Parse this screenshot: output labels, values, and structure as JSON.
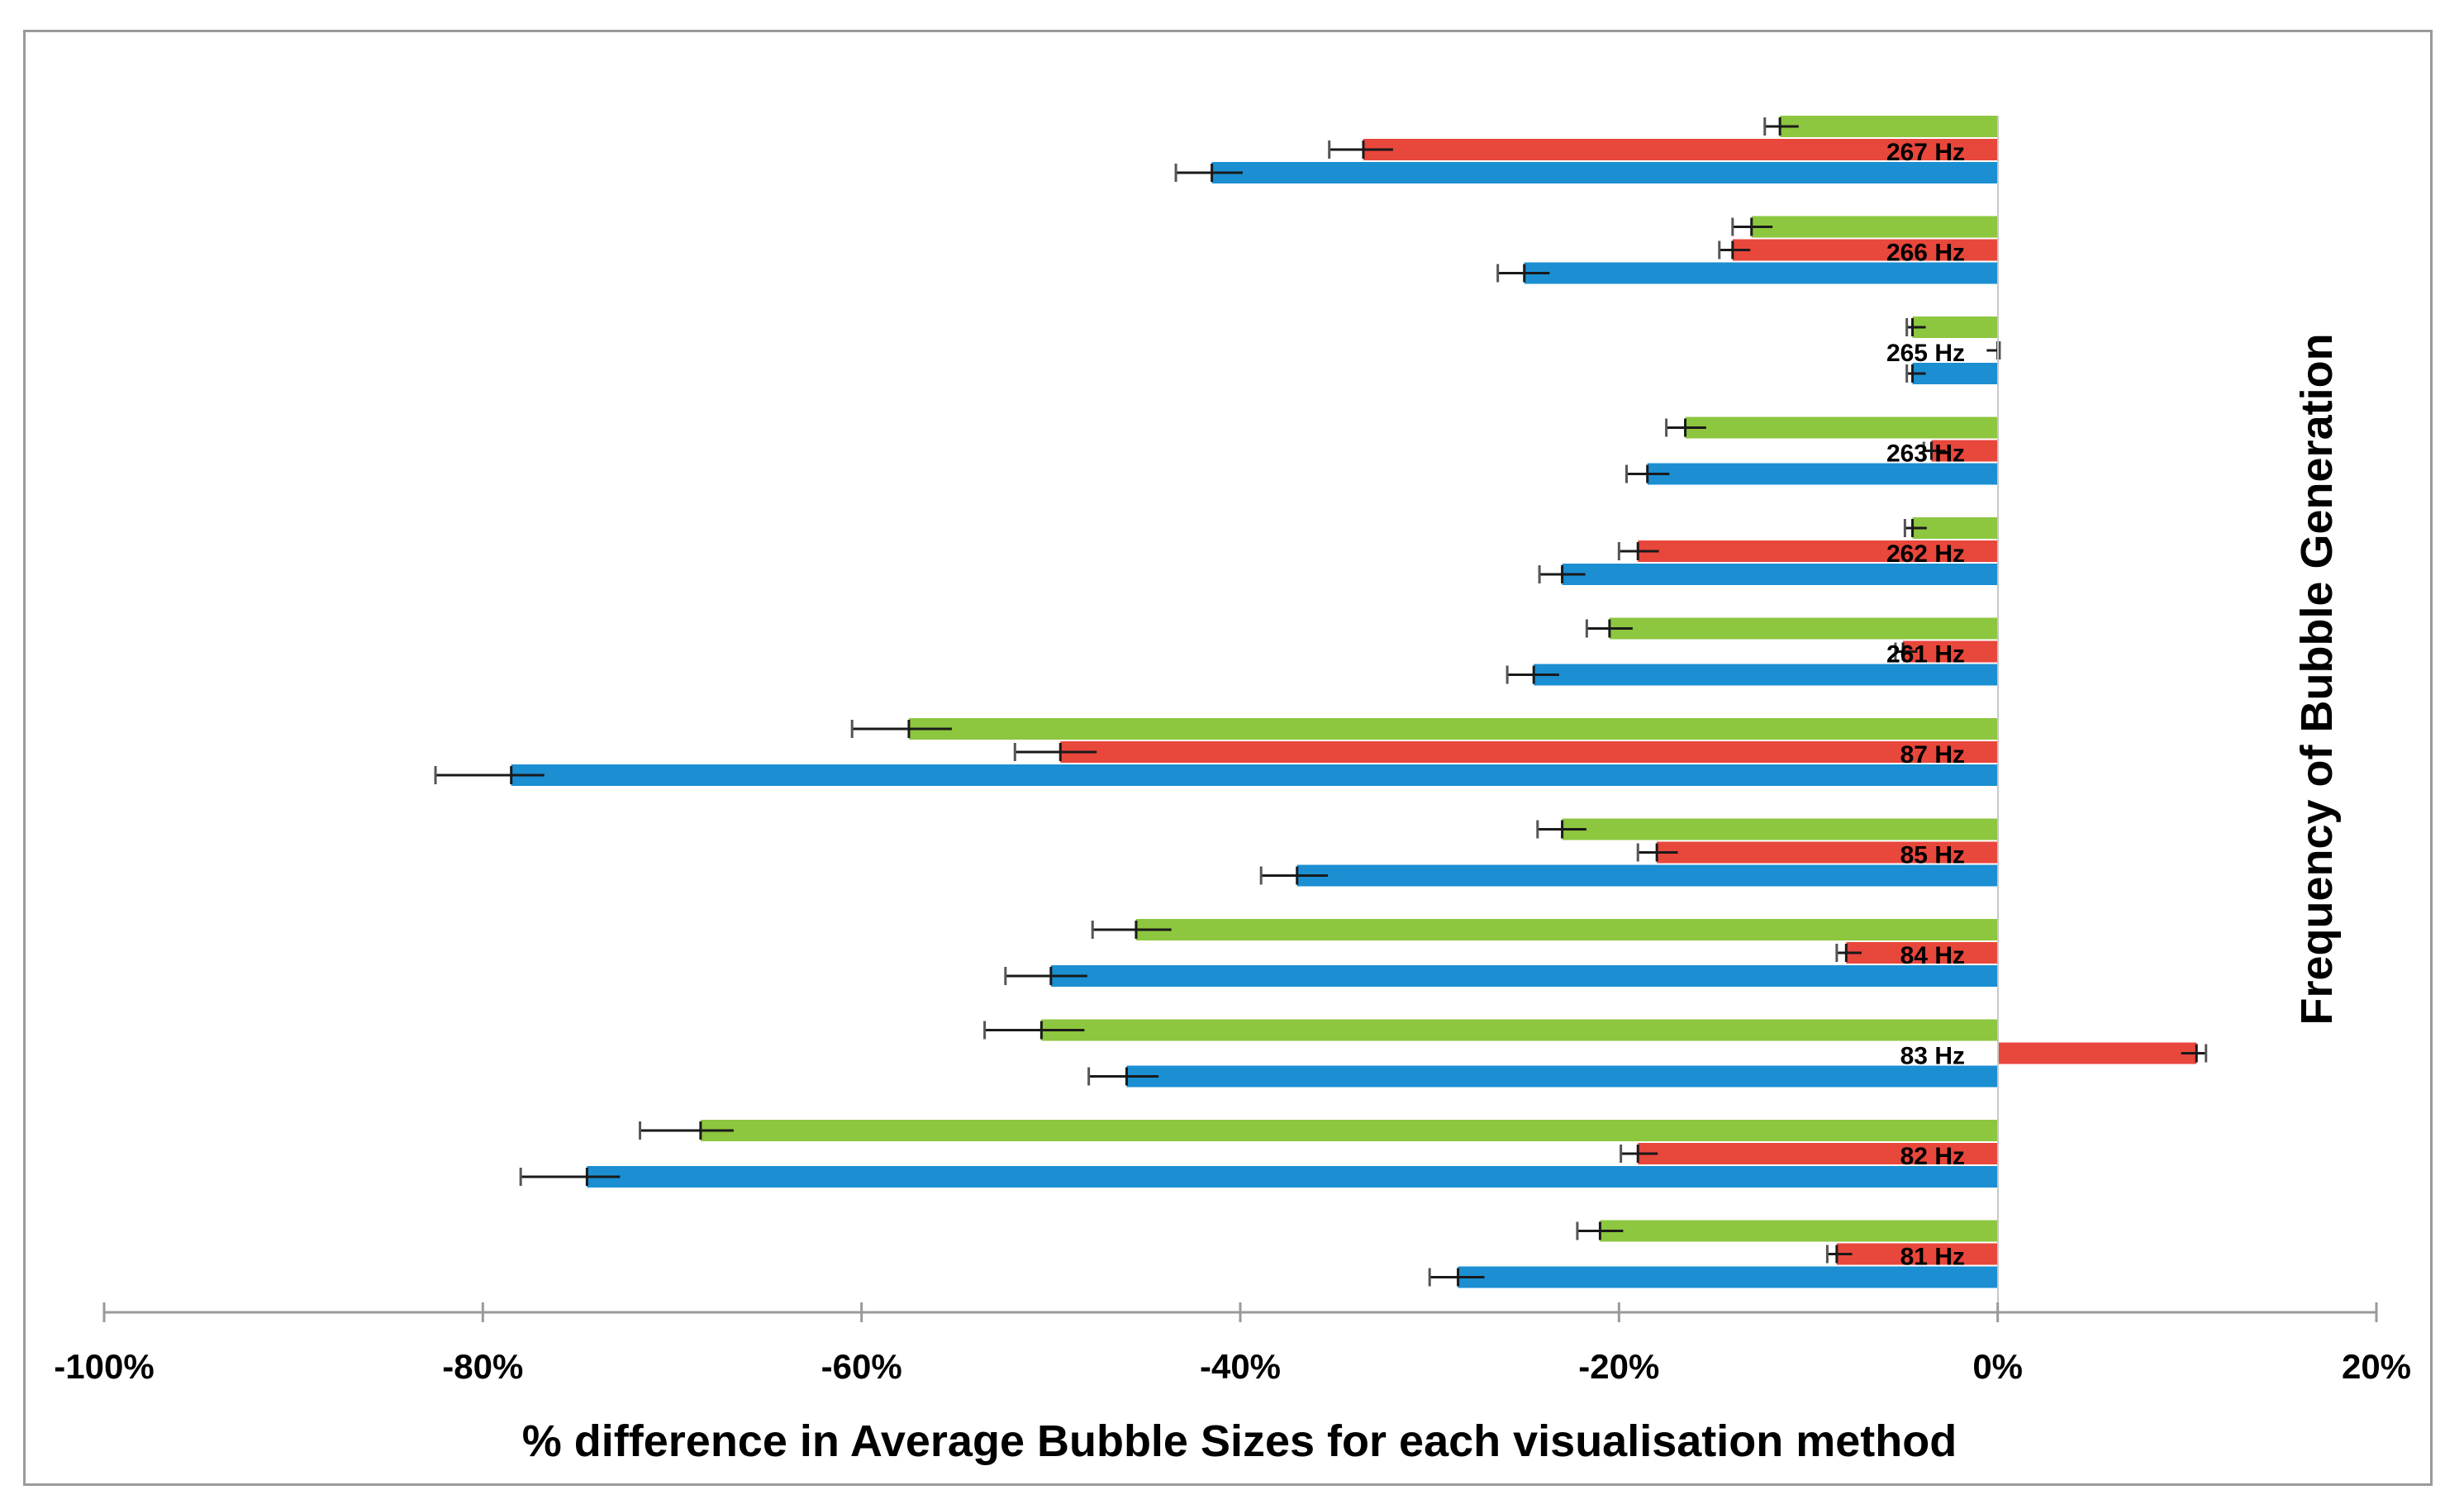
{
  "chart_data": {
    "type": "bar",
    "orientation": "horizontal",
    "categories": [
      "267 Hz",
      "266 Hz",
      "265 Hz",
      "263 Hz",
      "262 Hz",
      "261 Hz",
      "87 Hz",
      "85 Hz",
      "84 Hz",
      "83 Hz",
      "82 Hz",
      "81 Hz"
    ],
    "series": [
      {
        "name": "green",
        "color": "#8DC63F",
        "values": [
          -11.5,
          -13,
          -4.5,
          -16.5,
          -4.5,
          -20.5,
          -57.5,
          -23,
          -45.5,
          -50.5,
          -68.5,
          -21
        ],
        "errors": [
          0.8,
          1.0,
          0.3,
          1.0,
          0.4,
          1.2,
          3.0,
          1.3,
          2.3,
          3.0,
          3.2,
          1.2
        ]
      },
      {
        "name": "red",
        "color": "#E8473C",
        "values": [
          -33.5,
          -14,
          0,
          -3.5,
          -19,
          -5,
          -49.5,
          -18,
          -8,
          10.5,
          -19,
          -8.5
        ],
        "errors": [
          1.8,
          0.7,
          0.1,
          0.4,
          1.0,
          0.4,
          2.4,
          1.0,
          0.5,
          0.5,
          0.9,
          0.5
        ]
      },
      {
        "name": "blue",
        "color": "#1B8FD2",
        "values": [
          -41.5,
          -25,
          -4.5,
          -18.5,
          -23,
          -24.5,
          -78.5,
          -37,
          -50,
          -46,
          -74.5,
          -28.5
        ],
        "errors": [
          1.9,
          1.4,
          0.3,
          1.1,
          1.2,
          1.4,
          4.0,
          1.9,
          2.4,
          2.0,
          3.5,
          1.5
        ]
      }
    ],
    "xlim": [
      -100,
      20
    ],
    "xticks": [
      "-100%",
      "-80%",
      "-60%",
      "-40%",
      "-20%",
      "0%",
      "20%"
    ],
    "xtick_values": [
      -100,
      -80,
      -60,
      -40,
      -20,
      0,
      20
    ],
    "xlabel": "% difference in Average Bubble Sizes for each visualisation method",
    "ylabel": "Frequency of Bubble Generation",
    "legend": "none",
    "grid": false
  }
}
